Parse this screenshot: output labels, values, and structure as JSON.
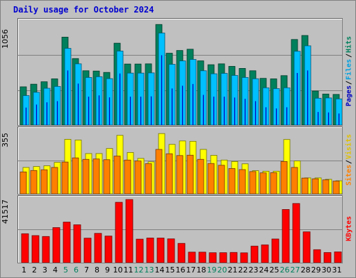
{
  "title": "Daily usage for October 2024",
  "colors": {
    "hits": "#00805c",
    "files": "#00c0ff",
    "pages": "#0000c0",
    "visits": "#ffff00",
    "sites": "#ff8000",
    "kbytes": "#ff0000",
    "weekend": "#00805c",
    "weekday": "#000000",
    "grid": "#808080"
  },
  "panels": {
    "top": {
      "ymax": "1056",
      "legend": [
        {
          "label": "Pages",
          "color": "#0000c0"
        },
        {
          "label": "Files",
          "color": "#00a0e0"
        },
        {
          "label": "Hits",
          "color": "#00805c"
        }
      ]
    },
    "mid": {
      "ymax": "355",
      "legend": [
        {
          "label": "Sites",
          "color": "#ff8000"
        },
        {
          "label": "Visits",
          "color": "#e0c000"
        }
      ]
    },
    "bottom": {
      "ymax": "41517",
      "legend": [
        {
          "label": "KBytes",
          "color": "#ff0000"
        }
      ]
    }
  },
  "weekend_days": [
    5,
    6,
    12,
    13,
    19,
    20,
    26,
    27
  ],
  "chart_data": {
    "type": "bar",
    "title": "Daily usage for October 2024",
    "categories": [
      "1",
      "2",
      "3",
      "4",
      "5",
      "6",
      "7",
      "8",
      "9",
      "10",
      "11",
      "12",
      "13",
      "14",
      "15",
      "16",
      "17",
      "18",
      "19",
      "20",
      "21",
      "22",
      "23",
      "24",
      "25",
      "26",
      "27",
      "28",
      "29",
      "30",
      "31"
    ],
    "series": [
      {
        "name": "Hits",
        "panel": "top",
        "ylim": [
          0,
          1056
        ],
        "values": [
          393,
          420,
          445,
          475,
          903,
          683,
          558,
          555,
          541,
          841,
          627,
          627,
          629,
          1033,
          738,
          766,
          779,
          660,
          620,
          629,
          603,
          582,
          558,
          480,
          475,
          508,
          879,
          920,
          350,
          319,
          315
        ]
      },
      {
        "name": "Files",
        "panel": "top",
        "ylim": [
          0,
          1056
        ],
        "values": [
          303,
          337,
          378,
          397,
          788,
          629,
          489,
          497,
          477,
          760,
          534,
          534,
          536,
          945,
          624,
          659,
          674,
          558,
          527,
          531,
          510,
          489,
          476,
          383,
          375,
          383,
          758,
          814,
          276,
          279,
          269
        ]
      },
      {
        "name": "Pages",
        "panel": "top",
        "ylim": [
          0,
          1056
        ],
        "values": [
          180,
          211,
          234,
          246,
          561,
          426,
          292,
          305,
          285,
          530,
          292,
          292,
          295,
          717,
          376,
          404,
          422,
          310,
          292,
          292,
          283,
          270,
          246,
          183,
          171,
          183,
          535,
          561,
          135,
          130,
          119
        ]
      },
      {
        "name": "Visits",
        "panel": "mid",
        "ylim": [
          0,
          355
        ],
        "values": [
          147,
          152,
          156,
          175,
          303,
          299,
          224,
          224,
          252,
          325,
          230,
          197,
          178,
          335,
          275,
          294,
          292,
          247,
          214,
          188,
          180,
          167,
          129,
          126,
          126,
          302,
          183,
          89,
          89,
          81,
          73
        ]
      },
      {
        "name": "Sites",
        "panel": "mid",
        "ylim": [
          0,
          355
        ],
        "values": [
          122,
          130,
          134,
          147,
          177,
          200,
          192,
          194,
          190,
          210,
          188,
          183,
          168,
          247,
          223,
          213,
          215,
          192,
          169,
          159,
          141,
          135,
          124,
          117,
          118,
          180,
          147,
          88,
          84,
          78,
          71
        ]
      },
      {
        "name": "KBytes",
        "panel": "bottom",
        "ylim": [
          0,
          41517
        ],
        "values": [
          18810,
          17600,
          17020,
          22790,
          26360,
          24630,
          15940,
          19040,
          17300,
          39220,
          41020,
          15300,
          16030,
          16000,
          15480,
          12540,
          6860,
          6850,
          6480,
          6500,
          6660,
          6410,
          10770,
          11590,
          15390,
          34550,
          38430,
          20040,
          8450,
          6610,
          7030
        ]
      }
    ]
  }
}
